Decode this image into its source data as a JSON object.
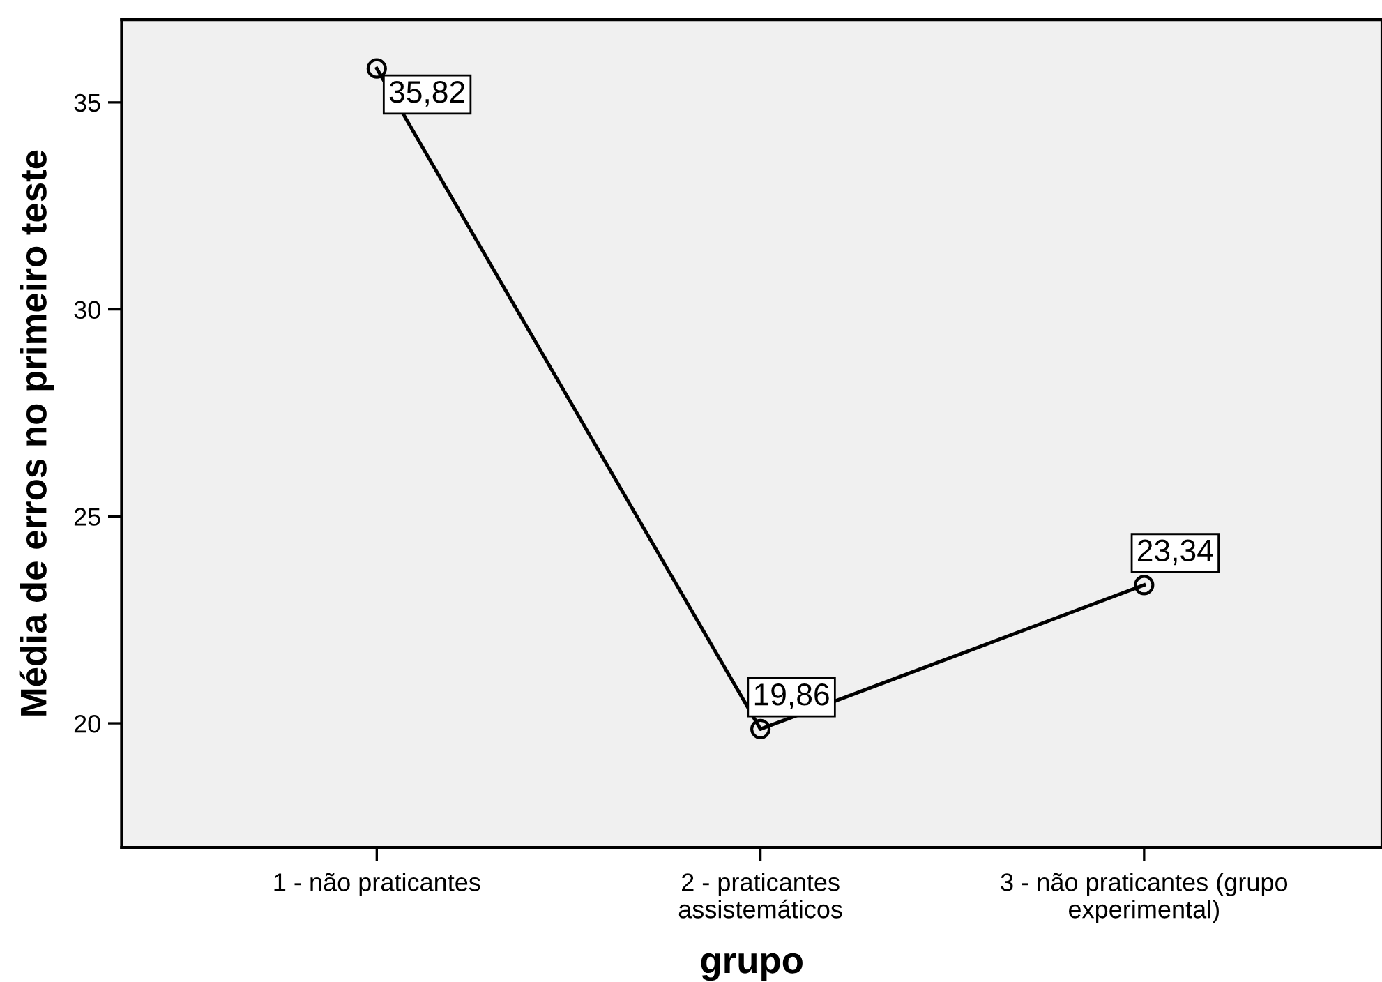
{
  "chart_data": {
    "type": "line",
    "xlabel": "grupo",
    "ylabel": "Média de erros no primeiro teste",
    "categories": [
      "1 - não praticantes",
      "2 - praticantes\nassistemáticos",
      "3 - não praticantes (grupo\nexperimental)"
    ],
    "values": [
      35.82,
      19.86,
      23.34
    ],
    "value_labels": [
      "35,82",
      "19,86",
      "23,34"
    ],
    "color": "#000000",
    "marker": "circle",
    "line_style": "solid",
    "ylim": [
      17,
      37
    ],
    "yticks": [
      20,
      25,
      30,
      35
    ],
    "grid": false,
    "legend": false
  }
}
